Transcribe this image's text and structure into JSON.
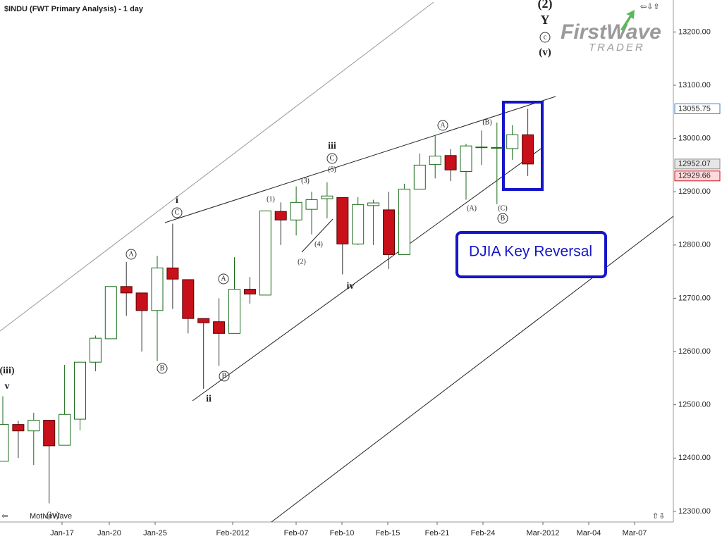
{
  "chart_data": {
    "type": "candlestick",
    "title": "$INDU (FWT Primary Analysis) - 1 day",
    "open": [
      12394,
      12463,
      12451,
      12471,
      12424,
      12473,
      12580,
      12624,
      12722,
      12710,
      12677,
      12757,
      12735,
      12662,
      12656,
      12634,
      12717,
      12706,
      12863,
      12847,
      12867,
      12887,
      12889,
      12802,
      12874,
      12866,
      12782,
      12905,
      12951,
      12968,
      12938,
      12983,
      12982,
      12981,
      13007
    ],
    "high": [
      12516,
      12470,
      12485,
      12471,
      12575,
      12580,
      12630,
      12722,
      12768,
      12710,
      12780,
      12840,
      12735,
      12662,
      12700,
      12777,
      12740,
      12864,
      12880,
      12910,
      12900,
      12918,
      12890,
      12890,
      12885,
      12900,
      12915,
      12972,
      13005,
      12980,
      12990,
      13015,
      13030,
      13025,
      13055.75
    ],
    "low": [
      12394,
      12400,
      12387,
      12315,
      12424,
      12452,
      12563,
      12624,
      12667,
      12600,
      12582,
      12680,
      12634,
      12530,
      12573,
      12634,
      12690,
      12706,
      12800,
      12818,
      12820,
      12850,
      12745,
      12800,
      12800,
      12755,
      12782,
      12905,
      12925,
      12920,
      12885,
      12950,
      12877,
      12960,
      12929.66
    ],
    "close": [
      12463,
      12451,
      12471,
      12423,
      12482,
      12580,
      12625,
      12722,
      12710,
      12677,
      12757,
      12736,
      12662,
      12654,
      12634,
      12717,
      12708,
      12864,
      12847,
      12880,
      12885,
      12892,
      12802,
      12876,
      12879,
      12782,
      12905,
      12950,
      12967,
      12941,
      12986,
      12984,
      12983,
      13007,
      12952.07
    ],
    "up_color": "#1a6b1a",
    "down_color": "#c8101a",
    "ylim": [
      12280,
      13260
    ],
    "yticks": [
      {
        "value": 12300,
        "label": "12300.00"
      },
      {
        "value": 12400,
        "label": "12400.00"
      },
      {
        "value": 12500,
        "label": "12500.00"
      },
      {
        "value": 12600,
        "label": "12600.00"
      },
      {
        "value": 12700,
        "label": "12700.00"
      },
      {
        "value": 12800,
        "label": "12800.00"
      },
      {
        "value": 12900,
        "label": "12900.00"
      },
      {
        "value": 13000,
        "label": "13000.00"
      },
      {
        "value": 13100,
        "label": "13100.00"
      },
      {
        "value": 13200,
        "label": "13200.00"
      }
    ],
    "x_labels": [
      "Jan-17",
      "Jan-20",
      "Jan-25",
      "Feb-2012",
      "Feb-07",
      "Feb-10",
      "Feb-15",
      "Feb-21",
      "Feb-24",
      "Mar-2012",
      "Mar-04",
      "Mar-07"
    ],
    "price_labels": [
      {
        "value": 13055.75,
        "label": "13055.75"
      },
      {
        "value": 12952.07,
        "label": "12952.07"
      },
      {
        "value": 12929.66,
        "label": "12929.66"
      }
    ],
    "annotations": [
      "(2)",
      "Y",
      "c",
      "(v)",
      "i",
      "C",
      "A",
      "B",
      "(iii)",
      "v",
      "(iv)",
      "ii",
      "B",
      "A",
      "(1)",
      "(2)",
      "(3)",
      "(4)",
      "(5)",
      "C",
      "iii",
      "iv",
      "A",
      "(B)",
      "(A)",
      "(C)",
      "B"
    ],
    "callout": "DJIA Key Reversal",
    "logo": {
      "brand": "FirstWave",
      "sub": "TRADER"
    },
    "footer": "MotiveWave"
  }
}
